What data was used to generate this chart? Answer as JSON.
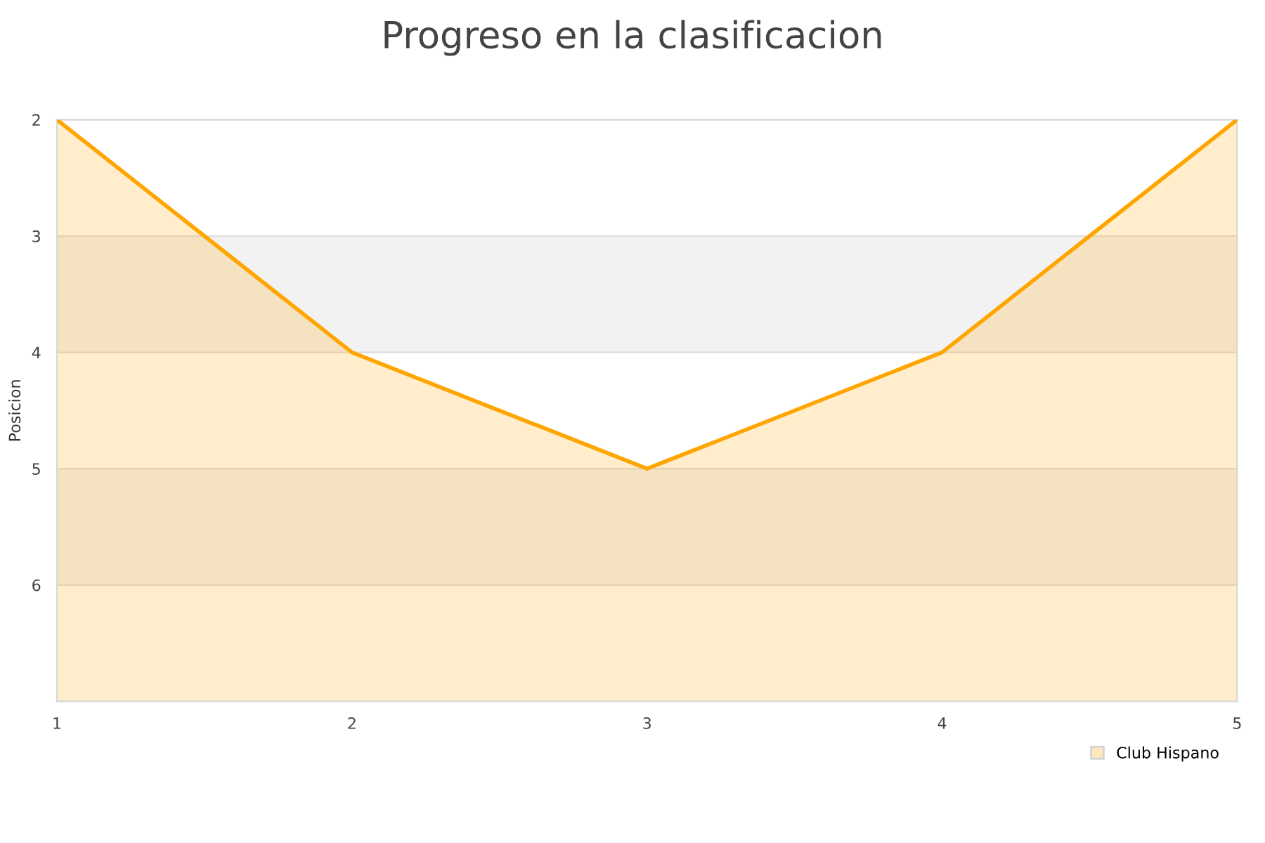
{
  "chart_data": {
    "type": "line",
    "title": "Progreso en la clasificacion",
    "ylabel": "Posicion",
    "x": [
      1,
      2,
      3,
      4,
      5
    ],
    "series": [
      {
        "name": "Club Hispano",
        "color": "#ffa500",
        "values": [
          2,
          4,
          5,
          4,
          2
        ],
        "lower": [
          2,
          4,
          5,
          4,
          2
        ],
        "upper": [
          7,
          7,
          7,
          7,
          7
        ]
      }
    ],
    "xlim": [
      1,
      5
    ],
    "xticks": [
      1,
      2,
      3,
      4,
      5
    ],
    "ylim": [
      7,
      2
    ],
    "yticks": [
      2,
      3,
      4,
      5,
      6
    ],
    "bands": [
      {
        "axis": "y",
        "from": 3,
        "to": 4,
        "color": "#f2f2f2"
      },
      {
        "axis": "y",
        "from": 5,
        "to": 6,
        "color": "#f2f2f2"
      }
    ],
    "grid": "y",
    "legend": "bottom right",
    "marker": "none",
    "line_style": "solid"
  }
}
